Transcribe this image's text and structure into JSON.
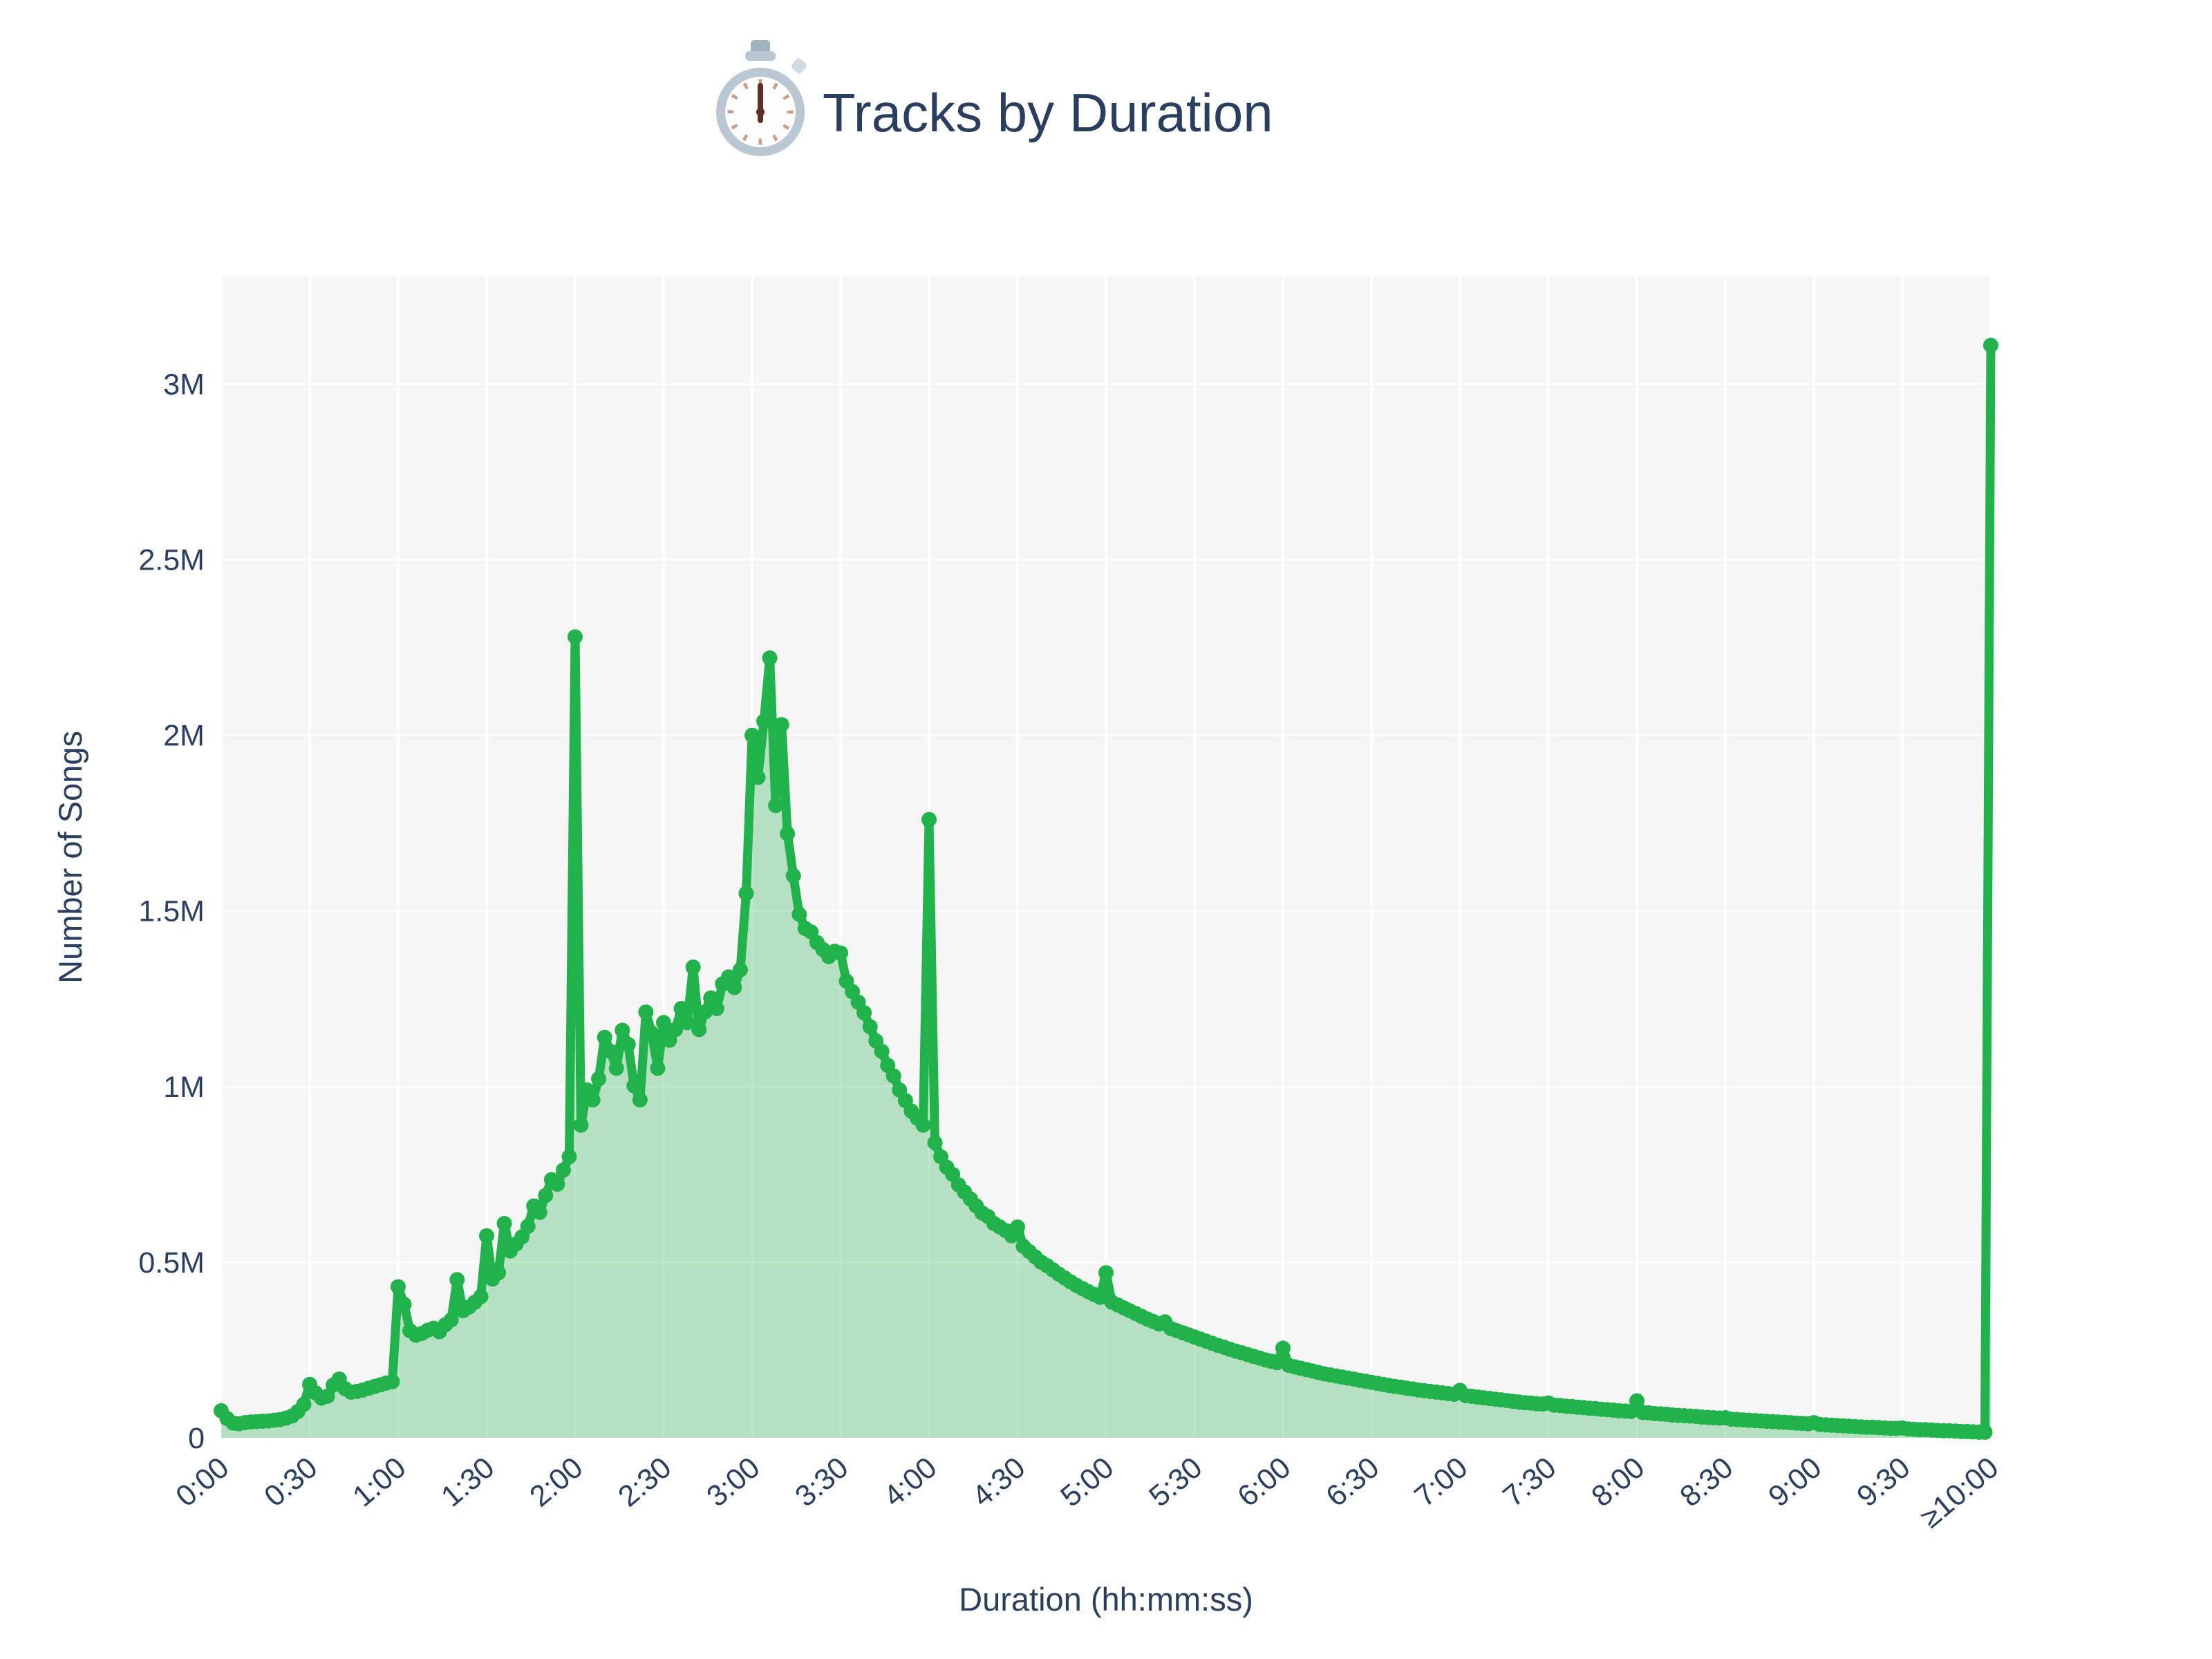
{
  "header": {
    "title": "Tracks by Duration",
    "icon": "stopwatch"
  },
  "chart_data": {
    "type": "area",
    "title": "Tracks by Duration",
    "xlabel": "Duration (hh:mm:ss)",
    "ylabel": "Number of Songs",
    "legend": "none",
    "grid": "on",
    "x_unit": "seconds",
    "xlim_seconds": [
      0,
      600
    ],
    "ylim_songs": [
      0,
      3306000
    ],
    "x_tick_seconds": [
      0,
      30,
      60,
      90,
      120,
      150,
      180,
      210,
      240,
      270,
      300,
      330,
      360,
      390,
      420,
      450,
      480,
      510,
      540,
      570,
      600
    ],
    "x_tick_labels": [
      "0:00",
      "0:30",
      "1:00",
      "1:30",
      "2:00",
      "2:30",
      "3:00",
      "3:30",
      "4:00",
      "4:30",
      "5:00",
      "5:30",
      "6:00",
      "6:30",
      "7:00",
      "7:30",
      "8:00",
      "8:30",
      "9:00",
      "9:30",
      "≥10:00"
    ],
    "y_tick_values": [
      0,
      500000,
      1000000,
      1500000,
      2000000,
      2500000,
      3000000
    ],
    "y_tick_labels": [
      "0",
      "0.5M",
      "1M",
      "1.5M",
      "2M",
      "2.5M",
      "3M"
    ],
    "colors": {
      "line": "#22b24c",
      "fill": "#22b24c",
      "fill_opacity": 0.3,
      "plot_background": "#f5f5f5",
      "gridline": "#ffffff",
      "font": "#2a3f5f"
    },
    "notable_points": {
      "spike_2min": [
        120,
        2280000
      ],
      "peak_3min06": [
        186,
        2220000
      ],
      "spike_3min10": [
        190,
        2030000
      ],
      "spike_4min": [
        240,
        1760000
      ],
      "spike_gte_10min": [
        600,
        3110000
      ]
    },
    "points_sec_songs": [
      [
        0,
        77000
      ],
      [
        2,
        55000
      ],
      [
        4,
        42000
      ],
      [
        6,
        40000
      ],
      [
        8,
        43000
      ],
      [
        10,
        45000
      ],
      [
        12,
        46000
      ],
      [
        14,
        47000
      ],
      [
        16,
        48000
      ],
      [
        18,
        50000
      ],
      [
        20,
        52000
      ],
      [
        22,
        56000
      ],
      [
        24,
        62000
      ],
      [
        26,
        75000
      ],
      [
        28,
        95000
      ],
      [
        30,
        152000
      ],
      [
        32,
        128000
      ],
      [
        34,
        113000
      ],
      [
        36,
        118000
      ],
      [
        38,
        150000
      ],
      [
        40,
        167000
      ],
      [
        42,
        140000
      ],
      [
        44,
        130000
      ],
      [
        46,
        132000
      ],
      [
        48,
        136000
      ],
      [
        50,
        141000
      ],
      [
        52,
        146000
      ],
      [
        54,
        151000
      ],
      [
        56,
        156000
      ],
      [
        58,
        160000
      ],
      [
        60,
        430000
      ],
      [
        62,
        380000
      ],
      [
        64,
        305000
      ],
      [
        66,
        292000
      ],
      [
        68,
        297000
      ],
      [
        70,
        306000
      ],
      [
        72,
        312000
      ],
      [
        74,
        302000
      ],
      [
        76,
        322000
      ],
      [
        78,
        336000
      ],
      [
        80,
        450000
      ],
      [
        82,
        362000
      ],
      [
        84,
        372000
      ],
      [
        86,
        386000
      ],
      [
        88,
        402000
      ],
      [
        90,
        575000
      ],
      [
        92,
        452000
      ],
      [
        94,
        470000
      ],
      [
        96,
        610000
      ],
      [
        98,
        532000
      ],
      [
        100,
        552000
      ],
      [
        102,
        572000
      ],
      [
        104,
        602000
      ],
      [
        106,
        660000
      ],
      [
        108,
        642000
      ],
      [
        110,
        690000
      ],
      [
        112,
        735000
      ],
      [
        114,
        722000
      ],
      [
        116,
        762000
      ],
      [
        118,
        800000
      ],
      [
        120,
        2280000
      ],
      [
        122,
        890000
      ],
      [
        124,
        990000
      ],
      [
        126,
        962000
      ],
      [
        128,
        1022000
      ],
      [
        130,
        1140000
      ],
      [
        132,
        1100000
      ],
      [
        134,
        1052000
      ],
      [
        136,
        1160000
      ],
      [
        138,
        1120000
      ],
      [
        140,
        1002000
      ],
      [
        142,
        962000
      ],
      [
        144,
        1212000
      ],
      [
        146,
        1152000
      ],
      [
        148,
        1052000
      ],
      [
        150,
        1182000
      ],
      [
        152,
        1132000
      ],
      [
        154,
        1162000
      ],
      [
        156,
        1222000
      ],
      [
        158,
        1182000
      ],
      [
        160,
        1340000
      ],
      [
        162,
        1162000
      ],
      [
        164,
        1212000
      ],
      [
        166,
        1252000
      ],
      [
        168,
        1222000
      ],
      [
        170,
        1292000
      ],
      [
        172,
        1312000
      ],
      [
        174,
        1282000
      ],
      [
        176,
        1332000
      ],
      [
        178,
        1550000
      ],
      [
        180,
        2000000
      ],
      [
        182,
        1880000
      ],
      [
        184,
        2040000
      ],
      [
        186,
        2220000
      ],
      [
        188,
        1800000
      ],
      [
        190,
        2030000
      ],
      [
        192,
        1720000
      ],
      [
        194,
        1600000
      ],
      [
        196,
        1490000
      ],
      [
        198,
        1450000
      ],
      [
        200,
        1440000
      ],
      [
        202,
        1410000
      ],
      [
        204,
        1390000
      ],
      [
        206,
        1370000
      ],
      [
        208,
        1385000
      ],
      [
        210,
        1380000
      ],
      [
        212,
        1300000
      ],
      [
        214,
        1270000
      ],
      [
        216,
        1240000
      ],
      [
        218,
        1210000
      ],
      [
        220,
        1170000
      ],
      [
        222,
        1130000
      ],
      [
        224,
        1100000
      ],
      [
        226,
        1060000
      ],
      [
        228,
        1030000
      ],
      [
        230,
        990000
      ],
      [
        232,
        960000
      ],
      [
        234,
        930000
      ],
      [
        236,
        910000
      ],
      [
        238,
        890000
      ],
      [
        240,
        1760000
      ],
      [
        242,
        840000
      ],
      [
        244,
        800000
      ],
      [
        246,
        770000
      ],
      [
        248,
        750000
      ],
      [
        250,
        720000
      ],
      [
        252,
        700000
      ],
      [
        254,
        680000
      ],
      [
        256,
        660000
      ],
      [
        258,
        640000
      ],
      [
        260,
        630000
      ],
      [
        262,
        610000
      ],
      [
        264,
        600000
      ],
      [
        266,
        590000
      ],
      [
        268,
        575000
      ],
      [
        270,
        600000
      ],
      [
        272,
        545000
      ],
      [
        274,
        530000
      ],
      [
        276,
        515000
      ],
      [
        278,
        500000
      ],
      [
        280,
        490000
      ],
      [
        282,
        478000
      ],
      [
        284,
        466000
      ],
      [
        286,
        455000
      ],
      [
        288,
        444000
      ],
      [
        290,
        434000
      ],
      [
        292,
        425000
      ],
      [
        294,
        416000
      ],
      [
        296,
        408000
      ],
      [
        298,
        400000
      ],
      [
        300,
        470000
      ],
      [
        302,
        386000
      ],
      [
        304,
        378000
      ],
      [
        306,
        370000
      ],
      [
        308,
        362000
      ],
      [
        310,
        354000
      ],
      [
        312,
        346000
      ],
      [
        314,
        338000
      ],
      [
        316,
        331000
      ],
      [
        318,
        324000
      ],
      [
        320,
        330000
      ],
      [
        322,
        311000
      ],
      [
        324,
        305000
      ],
      [
        326,
        299000
      ],
      [
        328,
        293000
      ],
      [
        330,
        287000
      ],
      [
        332,
        281000
      ],
      [
        334,
        275000
      ],
      [
        336,
        269000
      ],
      [
        338,
        263000
      ],
      [
        340,
        258000
      ],
      [
        342,
        252000
      ],
      [
        344,
        247000
      ],
      [
        346,
        242000
      ],
      [
        348,
        237000
      ],
      [
        350,
        232000
      ],
      [
        352,
        227000
      ],
      [
        354,
        222000
      ],
      [
        356,
        218000
      ],
      [
        358,
        214000
      ],
      [
        360,
        255000
      ],
      [
        362,
        206000
      ],
      [
        364,
        202000
      ],
      [
        366,
        198000
      ],
      [
        368,
        194000
      ],
      [
        370,
        190000
      ],
      [
        372,
        186000
      ],
      [
        374,
        182000
      ],
      [
        376,
        179000
      ],
      [
        378,
        176000
      ],
      [
        380,
        173000
      ],
      [
        382,
        170000
      ],
      [
        384,
        167000
      ],
      [
        386,
        164000
      ],
      [
        388,
        161000
      ],
      [
        390,
        158000
      ],
      [
        392,
        155000
      ],
      [
        394,
        152000
      ],
      [
        396,
        149000
      ],
      [
        398,
        146000
      ],
      [
        400,
        144000
      ],
      [
        402,
        141000
      ],
      [
        404,
        139000
      ],
      [
        406,
        136000
      ],
      [
        408,
        134000
      ],
      [
        410,
        132000
      ],
      [
        412,
        130000
      ],
      [
        414,
        128000
      ],
      [
        416,
        126000
      ],
      [
        418,
        124000
      ],
      [
        420,
        135000
      ],
      [
        422,
        120000
      ],
      [
        424,
        118000
      ],
      [
        426,
        116000
      ],
      [
        428,
        114000
      ],
      [
        430,
        112000
      ],
      [
        432,
        110000
      ],
      [
        434,
        108000
      ],
      [
        436,
        106000
      ],
      [
        438,
        104000
      ],
      [
        440,
        102000
      ],
      [
        442,
        100000
      ],
      [
        444,
        99000
      ],
      [
        446,
        97000
      ],
      [
        448,
        96000
      ],
      [
        450,
        99000
      ],
      [
        452,
        93000
      ],
      [
        454,
        92000
      ],
      [
        456,
        90000
      ],
      [
        458,
        89000
      ],
      [
        460,
        87000
      ],
      [
        462,
        86000
      ],
      [
        464,
        84000
      ],
      [
        466,
        83000
      ],
      [
        468,
        81000
      ],
      [
        470,
        80000
      ],
      [
        472,
        79000
      ],
      [
        474,
        77000
      ],
      [
        476,
        76000
      ],
      [
        478,
        75000
      ],
      [
        480,
        105000
      ],
      [
        482,
        72000
      ],
      [
        484,
        71000
      ],
      [
        486,
        69000
      ],
      [
        488,
        68000
      ],
      [
        490,
        67000
      ],
      [
        492,
        65000
      ],
      [
        494,
        64000
      ],
      [
        496,
        63000
      ],
      [
        498,
        62000
      ],
      [
        500,
        61000
      ],
      [
        502,
        59000
      ],
      [
        504,
        58000
      ],
      [
        506,
        57000
      ],
      [
        508,
        56000
      ],
      [
        510,
        57000
      ],
      [
        512,
        53000
      ],
      [
        514,
        52000
      ],
      [
        516,
        51000
      ],
      [
        518,
        50000
      ],
      [
        520,
        49000
      ],
      [
        522,
        48000
      ],
      [
        524,
        47000
      ],
      [
        526,
        46000
      ],
      [
        528,
        45000
      ],
      [
        530,
        44000
      ],
      [
        532,
        43000
      ],
      [
        534,
        42000
      ],
      [
        536,
        41000
      ],
      [
        538,
        40000
      ],
      [
        540,
        43000
      ],
      [
        542,
        38000
      ],
      [
        544,
        37000
      ],
      [
        546,
        36000
      ],
      [
        548,
        35000
      ],
      [
        550,
        34000
      ],
      [
        552,
        33000
      ],
      [
        554,
        32000
      ],
      [
        556,
        31000
      ],
      [
        558,
        30000
      ],
      [
        560,
        30000
      ],
      [
        562,
        29000
      ],
      [
        564,
        28000
      ],
      [
        566,
        27000
      ],
      [
        568,
        27000
      ],
      [
        570,
        28000
      ],
      [
        572,
        25000
      ],
      [
        574,
        24000
      ],
      [
        576,
        23000
      ],
      [
        578,
        23000
      ],
      [
        580,
        22000
      ],
      [
        582,
        21000
      ],
      [
        584,
        20000
      ],
      [
        586,
        20000
      ],
      [
        588,
        19000
      ],
      [
        590,
        18000
      ],
      [
        592,
        18000
      ],
      [
        594,
        17000
      ],
      [
        596,
        16000
      ],
      [
        598,
        16000
      ],
      [
        600,
        3110000
      ]
    ]
  }
}
